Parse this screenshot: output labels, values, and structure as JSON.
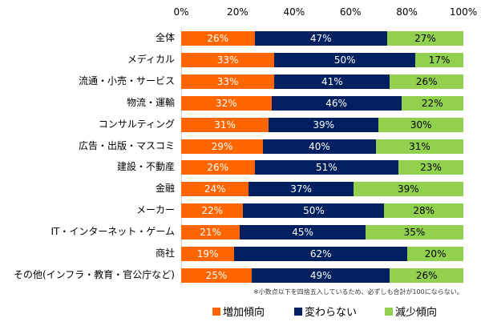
{
  "chart_data": {
    "type": "bar",
    "orientation": "horizontal",
    "stacked": "percent",
    "title": "",
    "xlabel": "",
    "ylabel": "",
    "xlim": [
      0,
      100
    ],
    "x_ticks": [
      "0%",
      "20%",
      "40%",
      "60%",
      "80%",
      "100%"
    ],
    "x_tick_values": [
      0,
      20,
      40,
      60,
      80,
      100
    ],
    "categories": [
      "全体",
      "メディカル",
      "流通・小売・サービス",
      "物流・運輸",
      "コンサルティング",
      "広告・出版・マスコミ",
      "建設・不動産",
      "金融",
      "メーカー",
      "IT・インターネット・ゲーム",
      "商社",
      "その他(インフラ・教育・官公庁など)"
    ],
    "series": [
      {
        "name": "増加傾向",
        "color": "#ff6600",
        "label_color": "#ffffff",
        "values": [
          26,
          33,
          33,
          32,
          31,
          29,
          26,
          24,
          22,
          21,
          19,
          25
        ]
      },
      {
        "name": "変わらない",
        "color": "#002060",
        "label_color": "#ffffff",
        "values": [
          47,
          50,
          41,
          46,
          39,
          40,
          51,
          37,
          50,
          45,
          62,
          49
        ]
      },
      {
        "name": "減少傾向",
        "color": "#92d050",
        "label_color": "#000000",
        "values": [
          27,
          17,
          26,
          22,
          30,
          31,
          23,
          39,
          28,
          35,
          20,
          26
        ]
      }
    ],
    "data_label_suffix": "%",
    "grid": false,
    "legend_position": "bottom",
    "annotation": "※小数点以下を四捨五入しているため、必ずしも合計が100にならない。"
  }
}
